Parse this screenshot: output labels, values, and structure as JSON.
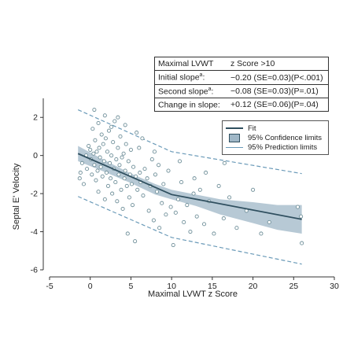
{
  "chart_data": {
    "type": "scatter",
    "xlabel": "Maximal  LVWT z Score",
    "ylabel": "Septal E' Velocity",
    "xlim": [
      -5,
      30
    ],
    "ylim": [
      -6,
      3
    ],
    "xticks": [
      "-5",
      "0",
      "5",
      "10",
      "15",
      "20",
      "25",
      "30"
    ],
    "yticks": [
      "-6",
      "-4",
      "-2",
      "0",
      "2"
    ],
    "xtick_values": [
      -5,
      0,
      5,
      10,
      15,
      20,
      25,
      30
    ],
    "ytick_values": [
      -6,
      -4,
      -2,
      0,
      2
    ],
    "grid": false,
    "legend_position": "top-right",
    "legend": [
      {
        "label": "Fit",
        "style": "line"
      },
      {
        "label": "95% Confidence limits",
        "style": "band"
      },
      {
        "label": "95% Prediction limits",
        "style": "dashed"
      }
    ],
    "fit": {
      "x": [
        -1.5,
        10,
        26
      ],
      "y": [
        0.1,
        -2.05,
        -3.35
      ]
    },
    "confidence_band": {
      "x": [
        -1.5,
        2,
        5,
        8,
        10,
        13,
        16,
        20,
        23,
        26
      ],
      "upper": [
        0.5,
        -0.3,
        -0.95,
        -1.5,
        -1.8,
        -2.05,
        -2.3,
        -2.45,
        -2.6,
        -2.6
      ],
      "lower": [
        -0.3,
        -0.9,
        -1.45,
        -2.05,
        -2.3,
        -2.65,
        -3.1,
        -3.55,
        -3.9,
        -4.1
      ]
    },
    "prediction_limits": {
      "x": [
        -1.5,
        10,
        26
      ],
      "upper": [
        2.4,
        0.2,
        -0.95
      ],
      "lower": [
        -2.15,
        -4.3,
        -5.7
      ]
    },
    "points": [
      [
        -1.3,
        -1.2
      ],
      [
        -1.2,
        -0.9
      ],
      [
        -1.0,
        -0.4
      ],
      [
        -0.8,
        -1.5
      ],
      [
        -0.5,
        0.0
      ],
      [
        -0.4,
        -0.7
      ],
      [
        -0.2,
        0.5
      ],
      [
        0.0,
        0.3
      ],
      [
        0.1,
        -0.2
      ],
      [
        0.2,
        -1.0
      ],
      [
        0.3,
        1.4
      ],
      [
        0.4,
        0.1
      ],
      [
        0.5,
        2.4
      ],
      [
        0.5,
        -0.5
      ],
      [
        0.6,
        0.8
      ],
      [
        0.7,
        -1.3
      ],
      [
        0.8,
        0.2
      ],
      [
        0.9,
        -0.8
      ],
      [
        1.0,
        1.7
      ],
      [
        1.0,
        -1.9
      ],
      [
        1.1,
        0.4
      ],
      [
        1.2,
        -0.1
      ],
      [
        1.3,
        -0.6
      ],
      [
        1.4,
        1.1
      ],
      [
        1.5,
        -1.1
      ],
      [
        1.6,
        0.6
      ],
      [
        1.7,
        -0.3
      ],
      [
        1.8,
        -2.3
      ],
      [
        1.9,
        0.9
      ],
      [
        2.0,
        -0.9
      ],
      [
        2.1,
        0.2
      ],
      [
        2.2,
        -1.6
      ],
      [
        2.3,
        1.3
      ],
      [
        2.4,
        -0.4
      ],
      [
        2.5,
        -1.2
      ],
      [
        2.6,
        0.0
      ],
      [
        2.7,
        -2.0
      ],
      [
        2.8,
        0.7
      ],
      [
        2.9,
        -0.7
      ],
      [
        3.0,
        1.8
      ],
      [
        3.1,
        -1.4
      ],
      [
        3.2,
        -0.2
      ],
      [
        3.3,
        -2.4
      ],
      [
        3.4,
        0.4
      ],
      [
        3.5,
        -1.0
      ],
      [
        3.6,
        -0.5
      ],
      [
        3.7,
        1.0
      ],
      [
        3.8,
        -1.8
      ],
      [
        3.9,
        -0.1
      ],
      [
        4.0,
        -2.8
      ],
      [
        4.1,
        0.1
      ],
      [
        4.2,
        -1.2
      ],
      [
        4.3,
        -0.8
      ],
      [
        4.4,
        0.6
      ],
      [
        4.5,
        -1.6
      ],
      [
        4.6,
        -4.1
      ],
      [
        4.7,
        -0.3
      ],
      [
        4.8,
        -2.2
      ],
      [
        4.9,
        -1.0
      ],
      [
        5.0,
        0.3
      ],
      [
        5.1,
        -1.5
      ],
      [
        5.2,
        -2.6
      ],
      [
        5.3,
        -0.6
      ],
      [
        5.5,
        -4.5
      ],
      [
        5.6,
        -1.1
      ],
      [
        5.8,
        -1.8
      ],
      [
        6.0,
        0.4
      ],
      [
        6.1,
        -0.9
      ],
      [
        6.2,
        -1.4
      ],
      [
        6.5,
        -2.1
      ],
      [
        6.7,
        -0.7
      ],
      [
        7.0,
        -1.2
      ],
      [
        7.2,
        -2.9
      ],
      [
        7.4,
        -1.6
      ],
      [
        7.6,
        -0.2
      ],
      [
        7.8,
        -3.4
      ],
      [
        8.0,
        -1.0
      ],
      [
        8.2,
        -1.9
      ],
      [
        8.5,
        -3.8
      ],
      [
        8.8,
        -2.5
      ],
      [
        9.0,
        -1.5
      ],
      [
        9.3,
        -3.1
      ],
      [
        9.6,
        -0.8
      ],
      [
        9.9,
        -2.7
      ],
      [
        10.2,
        -4.7
      ],
      [
        10.5,
        -3.0
      ],
      [
        10.8,
        -2.3
      ],
      [
        11.2,
        -1.4
      ],
      [
        11.5,
        -3.5
      ],
      [
        11.9,
        -2.6
      ],
      [
        12.3,
        -4.0
      ],
      [
        12.7,
        -2.0
      ],
      [
        13.1,
        -3.2
      ],
      [
        13.5,
        -1.8
      ],
      [
        14.0,
        -3.6
      ],
      [
        14.6,
        -2.4
      ],
      [
        15.2,
        -4.1
      ],
      [
        15.8,
        -1.6
      ],
      [
        16.4,
        -3.3
      ],
      [
        17.1,
        -2.2
      ],
      [
        18.0,
        -3.8
      ],
      [
        19.2,
        -2.9
      ],
      [
        20.0,
        -1.8
      ],
      [
        21.0,
        -4.1
      ],
      [
        22.0,
        -3.5
      ],
      [
        25.5,
        -2.7
      ],
      [
        26.0,
        -4.6
      ],
      [
        25.9,
        -3.2
      ],
      [
        16.5,
        -0.4
      ],
      [
        14.2,
        -0.9
      ],
      [
        12.8,
        -1.2
      ],
      [
        11.0,
        -0.3
      ],
      [
        8.4,
        -0.5
      ],
      [
        7.9,
        0.2
      ],
      [
        6.4,
        0.9
      ],
      [
        5.7,
        1.2
      ],
      [
        4.3,
        1.6
      ],
      [
        3.4,
        2.0
      ],
      [
        2.6,
        1.5
      ],
      [
        1.8,
        2.1
      ]
    ]
  },
  "stats_table": {
    "header_label": "Maximal LVWT",
    "header_value": "z Score >10",
    "rows": [
      {
        "label": "Initial slope",
        "sup": "a",
        "suffix": ":",
        "value": "−0.20 (SE=0.03)(P<.001)"
      },
      {
        "label": "Second slope",
        "sup": "a",
        "suffix": ":",
        "value": "−0.08 (SE=0.03)(P=.01)"
      },
      {
        "label": "Change in slope:",
        "sup": "",
        "suffix": "",
        "value": "+0.12 (SE=0.06)(P=.04)"
      }
    ]
  },
  "colors": {
    "fit": "#2f4f5f",
    "band": "#9fb7c7",
    "prediction": "#6a9ab8",
    "points": "#6f8f99"
  }
}
